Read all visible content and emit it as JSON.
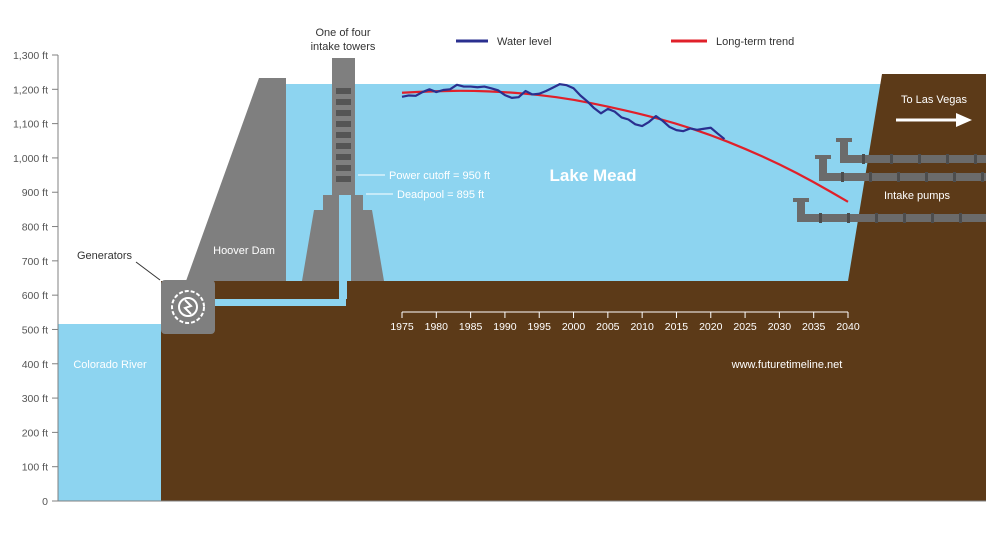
{
  "colors": {
    "water": "#8dd4f0",
    "ground": "#5c3a18",
    "concrete": "#7f7f7f",
    "concrete_dark": "#666666",
    "pipe": "#6b6b6b",
    "water_level_line": "#2a2f8f",
    "trend_line": "#e0202a",
    "axis": "#808080",
    "text_white": "#ffffff",
    "text_dark": "#333333"
  },
  "y_axis": {
    "ticks": [
      "1,300 ft",
      "1,200 ft",
      "1,100 ft",
      "1,000 ft",
      "900 ft",
      "800 ft",
      "700 ft",
      "600 ft",
      "500 ft",
      "400 ft",
      "300 ft",
      "200 ft",
      "100 ft",
      "0"
    ]
  },
  "legend": {
    "water_level": "Water level",
    "trend": "Long-term trend"
  },
  "labels": {
    "intake_towers": [
      "One of four",
      "intake towers"
    ],
    "hoover_dam": "Hoover Dam",
    "generators": "Generators",
    "colorado_river": "Colorado River",
    "lake_mead": "Lake Mead",
    "power_cutoff": "Power cutoff = 950 ft",
    "deadpool": "Deadpool = 895 ft",
    "intake_pumps": "Intake pumps",
    "to_las_vegas": "To Las Vegas",
    "website": "www.futuretimeline.net"
  },
  "chart_data": {
    "type": "line",
    "x_ticks": [
      1975,
      1980,
      1985,
      1990,
      1995,
      2000,
      2005,
      2010,
      2015,
      2020,
      2025,
      2030,
      2035,
      2040
    ],
    "xlim": [
      1975,
      2040
    ],
    "ylim": [
      0,
      1300
    ],
    "ylabel": "",
    "series": [
      {
        "name": "Water level",
        "x": [
          1975,
          1976,
          1977,
          1978,
          1979,
          1980,
          1981,
          1982,
          1983,
          1984,
          1985,
          1986,
          1987,
          1988,
          1989,
          1990,
          1991,
          1992,
          1993,
          1994,
          1995,
          1996,
          1997,
          1998,
          1999,
          2000,
          2001,
          2002,
          2003,
          2004,
          2005,
          2006,
          2007,
          2008,
          2009,
          2010,
          2011,
          2012,
          2013,
          2014,
          2015,
          2016,
          2017,
          2018,
          2019,
          2020,
          2021,
          2022
        ],
        "values": [
          1178,
          1182,
          1181,
          1192,
          1200,
          1192,
          1198,
          1200,
          1213,
          1208,
          1208,
          1206,
          1208,
          1203,
          1197,
          1183,
          1175,
          1177,
          1195,
          1185,
          1187,
          1195,
          1205,
          1215,
          1212,
          1203,
          1182,
          1165,
          1145,
          1130,
          1143,
          1135,
          1118,
          1112,
          1098,
          1093,
          1105,
          1122,
          1108,
          1090,
          1081,
          1078,
          1086,
          1082,
          1085,
          1088,
          1071,
          1055
        ]
      },
      {
        "name": "Long-term trend",
        "x": [
          1975,
          1980,
          1985,
          1990,
          1995,
          2000,
          2005,
          2010,
          2015,
          2020,
          2025,
          2030,
          2035,
          2040
        ],
        "values": [
          1190,
          1195,
          1196,
          1192,
          1184,
          1170,
          1150,
          1127,
          1100,
          1067,
          1027,
          982,
          930,
          872
        ]
      }
    ]
  }
}
